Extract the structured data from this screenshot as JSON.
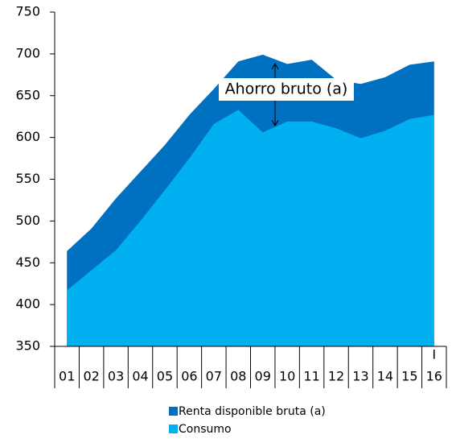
{
  "chart_data": {
    "type": "area",
    "categories": [
      "01",
      "02",
      "03",
      "04",
      "05",
      "06",
      "07",
      "08",
      "09",
      "10",
      "11",
      "12",
      "13",
      "14",
      "15",
      "16"
    ],
    "x_note": "I",
    "series": [
      {
        "name": "Renta disponible bruta (a)",
        "color": "#0070c0",
        "values": [
          464,
          491,
          527,
          559,
          591,
          627,
          658,
          691,
          699,
          688,
          693,
          669,
          664,
          672,
          687,
          691
        ]
      },
      {
        "name": "Consumo",
        "color": "#00b0f0",
        "values": [
          417,
          441,
          465,
          500,
          537,
          575,
          616,
          633,
          606,
          619,
          619,
          611,
          599,
          608,
          622,
          627
        ]
      }
    ],
    "annotation": "Ahorro bruto (a)",
    "ylim": [
      350,
      750
    ],
    "yticks": [
      350,
      400,
      450,
      500,
      550,
      600,
      650,
      700,
      750
    ]
  }
}
